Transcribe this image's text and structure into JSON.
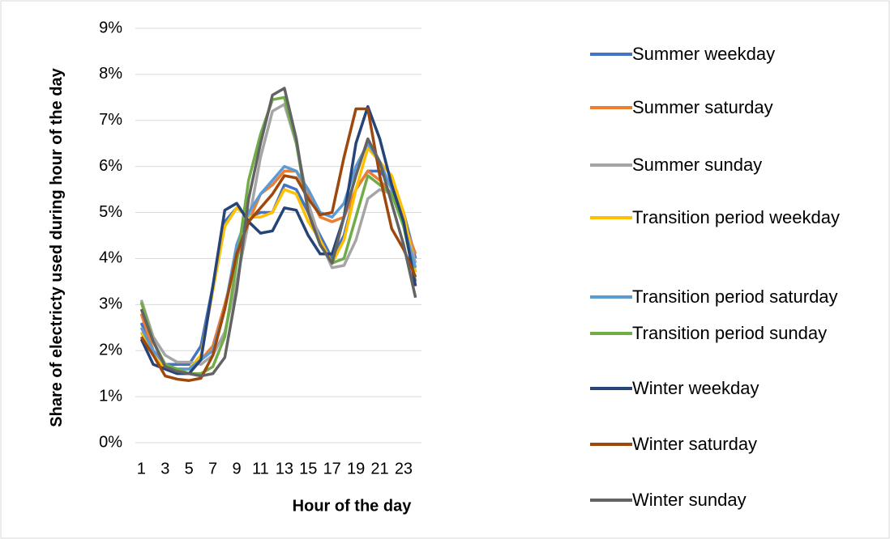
{
  "chart_data": {
    "type": "line",
    "x_label": "Hour of the day",
    "y_label": "Share of electricty used during hour of the day",
    "x": [
      1,
      2,
      3,
      4,
      5,
      6,
      7,
      8,
      9,
      10,
      11,
      12,
      13,
      14,
      15,
      16,
      17,
      18,
      19,
      20,
      21,
      22,
      23,
      24
    ],
    "xlim": [
      0.5,
      24.5
    ],
    "xticks": [
      1,
      3,
      5,
      7,
      9,
      11,
      13,
      15,
      17,
      19,
      21,
      23
    ],
    "ylim": [
      0,
      9
    ],
    "yticks": [
      {
        "value": 0,
        "label": "0%"
      },
      {
        "value": 1,
        "label": "1%"
      },
      {
        "value": 2,
        "label": "2%"
      },
      {
        "value": 3,
        "label": "3%"
      },
      {
        "value": 4,
        "label": "4%"
      },
      {
        "value": 5,
        "label": "5%"
      },
      {
        "value": 6,
        "label": "6%"
      },
      {
        "value": 7,
        "label": "7%"
      },
      {
        "value": 8,
        "label": "8%"
      },
      {
        "value": 9,
        "label": "9%"
      }
    ],
    "grid": true,
    "legend": "right",
    "series": [
      {
        "name": "Summer weekday",
        "color": "#4472c4",
        "values": [
          2.6,
          2.0,
          1.7,
          1.7,
          1.7,
          2.1,
          3.4,
          4.8,
          5.1,
          4.9,
          5.0,
          5.0,
          5.6,
          5.5,
          5.0,
          4.5,
          4.0,
          4.5,
          5.5,
          5.9,
          5.9,
          5.6,
          5.0,
          4.0
        ]
      },
      {
        "name": "Summer saturday",
        "color": "#ed7d31",
        "values": [
          2.8,
          2.0,
          1.7,
          1.6,
          1.6,
          1.8,
          2.1,
          3.0,
          4.0,
          4.8,
          5.4,
          5.6,
          5.9,
          5.9,
          5.4,
          4.9,
          4.8,
          4.9,
          5.5,
          5.9,
          5.7,
          5.4,
          4.8,
          4.1
        ]
      },
      {
        "name": "Summer sunday",
        "color": "#a5a5a5",
        "values": [
          3.1,
          2.3,
          1.9,
          1.75,
          1.75,
          1.7,
          1.9,
          2.4,
          3.5,
          4.8,
          6.2,
          7.2,
          7.35,
          6.5,
          5.2,
          4.4,
          3.8,
          3.85,
          4.4,
          5.3,
          5.5,
          5.4,
          4.9,
          3.9
        ]
      },
      {
        "name": "Transition period weekday",
        "color": "#ffc000",
        "values": [
          2.4,
          1.9,
          1.6,
          1.6,
          1.6,
          1.9,
          3.3,
          4.7,
          5.1,
          4.9,
          4.9,
          5.0,
          5.5,
          5.4,
          4.8,
          4.4,
          3.9,
          4.4,
          5.5,
          6.4,
          6.1,
          5.8,
          5.0,
          3.7
        ]
      },
      {
        "name": "Transition period saturday",
        "color": "#5b9bd5",
        "values": [
          2.5,
          2.0,
          1.7,
          1.6,
          1.6,
          1.8,
          2.0,
          2.9,
          4.3,
          5.0,
          5.4,
          5.7,
          6.0,
          5.9,
          5.5,
          5.0,
          4.9,
          5.2,
          6.0,
          6.5,
          6.1,
          5.5,
          4.7,
          3.8
        ]
      },
      {
        "name": "Transition period sunday",
        "color": "#70ad47",
        "values": [
          3.05,
          2.2,
          1.7,
          1.6,
          1.5,
          1.5,
          1.65,
          2.3,
          3.9,
          5.7,
          6.7,
          7.45,
          7.5,
          6.5,
          5.0,
          4.3,
          3.9,
          4.0,
          4.9,
          5.8,
          5.6,
          5.4,
          4.7,
          3.5
        ]
      },
      {
        "name": "Winter weekday",
        "color": "#264478",
        "values": [
          2.25,
          1.7,
          1.6,
          1.5,
          1.5,
          1.8,
          3.4,
          5.05,
          5.2,
          4.8,
          4.55,
          4.6,
          5.1,
          5.05,
          4.5,
          4.1,
          4.1,
          4.9,
          6.5,
          7.3,
          6.6,
          5.6,
          4.8,
          3.4
        ]
      },
      {
        "name": "Winter saturday",
        "color": "#9e480e",
        "values": [
          2.3,
          1.9,
          1.45,
          1.38,
          1.35,
          1.4,
          1.9,
          2.9,
          4.1,
          4.8,
          5.1,
          5.4,
          5.8,
          5.75,
          5.3,
          4.95,
          5.0,
          6.2,
          7.25,
          7.25,
          5.8,
          4.65,
          4.2,
          3.6
        ]
      },
      {
        "name": "Winter sunday",
        "color": "#636363",
        "values": [
          2.9,
          2.2,
          1.65,
          1.55,
          1.5,
          1.45,
          1.5,
          1.85,
          3.3,
          5.3,
          6.5,
          7.55,
          7.7,
          6.6,
          5.0,
          4.3,
          3.9,
          4.9,
          5.8,
          6.6,
          6.1,
          5.2,
          4.3,
          3.15
        ]
      }
    ]
  }
}
